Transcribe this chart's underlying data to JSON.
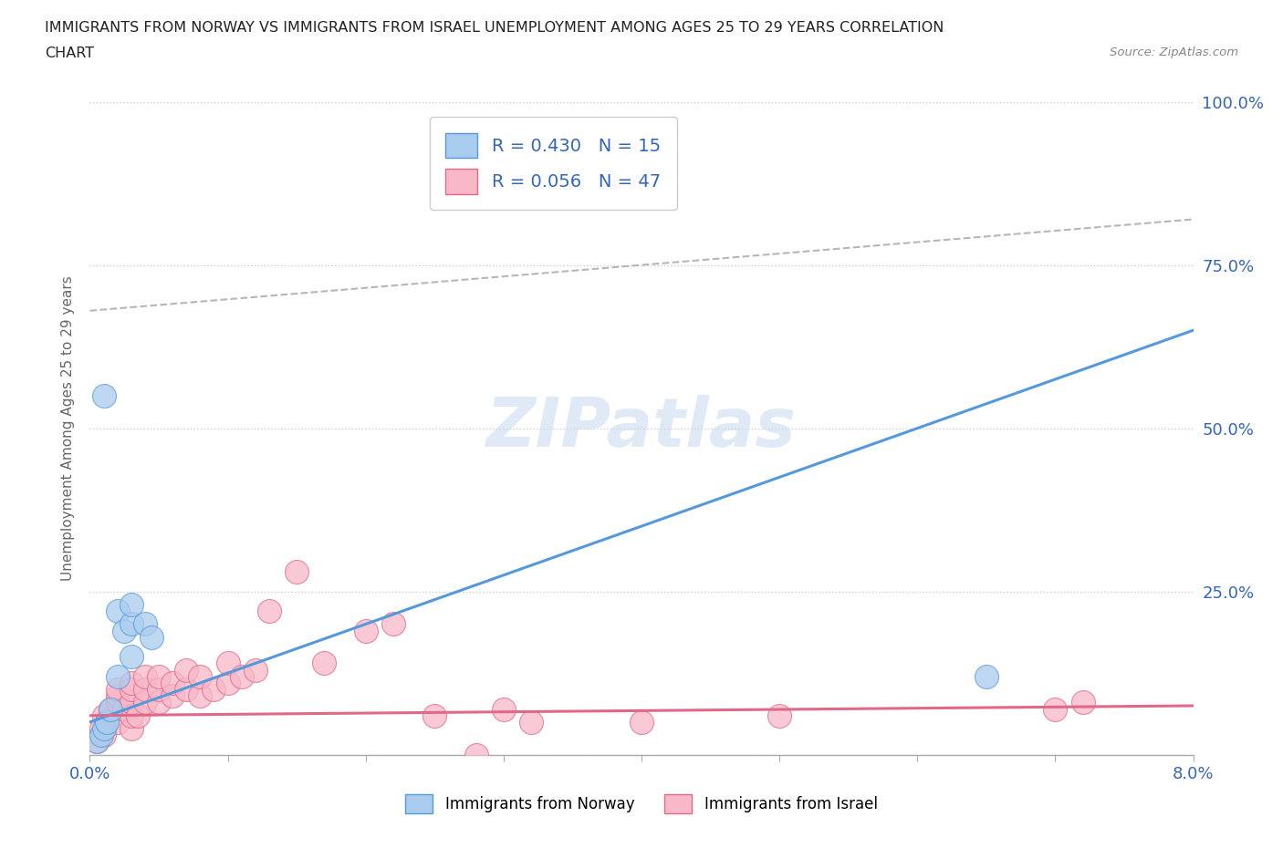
{
  "title_line1": "IMMIGRANTS FROM NORWAY VS IMMIGRANTS FROM ISRAEL UNEMPLOYMENT AMONG AGES 25 TO 29 YEARS CORRELATION",
  "title_line2": "CHART",
  "source": "Source: ZipAtlas.com",
  "norway_R": 0.43,
  "norway_N": 15,
  "israel_R": 0.056,
  "israel_N": 47,
  "norway_color": "#aaccee",
  "norway_line_color": "#5599dd",
  "israel_color": "#f8b8c8",
  "israel_line_color": "#e06888",
  "dashed_line_color": "#aaaaaa",
  "watermark_color": "#ccddf0",
  "watermark": "ZIPatlas",
  "xlim": [
    0.0,
    0.08
  ],
  "ylim": [
    0.0,
    1.0
  ],
  "xticks": [
    0.0,
    0.01,
    0.02,
    0.03,
    0.04,
    0.05,
    0.06,
    0.07,
    0.08
  ],
  "xticklabels": [
    "0.0%",
    "",
    "",
    "",
    "",
    "",
    "",
    "",
    "8.0%"
  ],
  "yticks": [
    0.0,
    0.25,
    0.5,
    0.75,
    1.0
  ],
  "yticklabels": [
    "",
    "25.0%",
    "50.0%",
    "75.0%",
    "100.0%"
  ],
  "ylabel": "Unemployment Among Ages 25 to 29 years",
  "norway_x": [
    0.0005,
    0.0008,
    0.001,
    0.0012,
    0.0015,
    0.002,
    0.002,
    0.0025,
    0.003,
    0.003,
    0.003,
    0.004,
    0.0045,
    0.065,
    0.001
  ],
  "norway_y": [
    0.02,
    0.03,
    0.04,
    0.05,
    0.07,
    0.12,
    0.22,
    0.19,
    0.15,
    0.2,
    0.23,
    0.2,
    0.18,
    0.12,
    0.55
  ],
  "israel_x": [
    0.0005,
    0.0008,
    0.001,
    0.001,
    0.0012,
    0.0015,
    0.002,
    0.002,
    0.002,
    0.002,
    0.0025,
    0.003,
    0.003,
    0.003,
    0.003,
    0.003,
    0.0035,
    0.004,
    0.004,
    0.004,
    0.005,
    0.005,
    0.005,
    0.006,
    0.006,
    0.007,
    0.007,
    0.008,
    0.008,
    0.009,
    0.01,
    0.01,
    0.011,
    0.012,
    0.013,
    0.015,
    0.017,
    0.02,
    0.022,
    0.025,
    0.028,
    0.03,
    0.032,
    0.04,
    0.05,
    0.07,
    0.072
  ],
  "israel_y": [
    0.02,
    0.04,
    0.03,
    0.06,
    0.05,
    0.07,
    0.05,
    0.08,
    0.09,
    0.1,
    0.07,
    0.04,
    0.06,
    0.08,
    0.1,
    0.11,
    0.06,
    0.08,
    0.1,
    0.12,
    0.08,
    0.1,
    0.12,
    0.09,
    0.11,
    0.1,
    0.13,
    0.09,
    0.12,
    0.1,
    0.11,
    0.14,
    0.12,
    0.13,
    0.22,
    0.28,
    0.14,
    0.19,
    0.2,
    0.06,
    0.0,
    0.07,
    0.05,
    0.05,
    0.06,
    0.07,
    0.08
  ],
  "norway_line_x0": 0.0,
  "norway_line_x1": 0.08,
  "norway_line_y0": 0.05,
  "norway_line_y1": 0.65,
  "israel_line_x0": 0.0,
  "israel_line_x1": 0.08,
  "israel_line_y0": 0.06,
  "israel_line_y1": 0.075,
  "dashed_line_x0": 0.0,
  "dashed_line_x1": 0.08,
  "dashed_line_y0": 0.68,
  "dashed_line_y1": 0.82
}
